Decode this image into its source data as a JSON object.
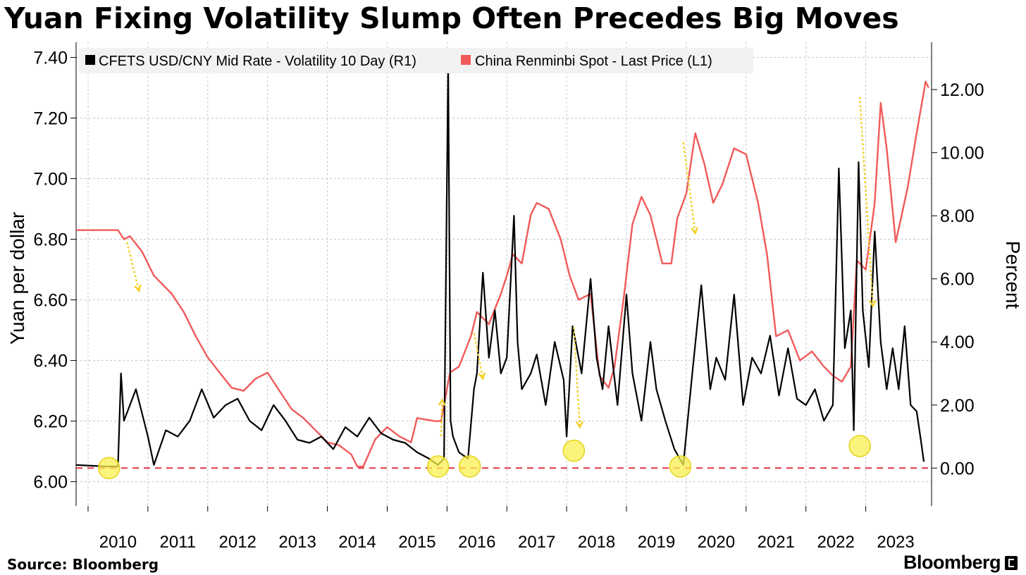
{
  "title": "Yuan Fixing Volatility Slump Often Precedes Big Moves",
  "source": "Source: Bloomberg",
  "brand": "Bloomberg",
  "chart_data": {
    "type": "line",
    "xlabel": "",
    "ylabel_left": "Yuan per dollar",
    "ylabel_right": "Percent",
    "x_ticks": [
      "2010",
      "2011",
      "2012",
      "2013",
      "2014",
      "2015",
      "2016",
      "2017",
      "2018",
      "2019",
      "2020",
      "2021",
      "2022",
      "2023"
    ],
    "x_range": [
      2009.3,
      2023.6
    ],
    "ylim_left": [
      5.92,
      7.45
    ],
    "ylim_right": [
      -1.2,
      13.5
    ],
    "left_ticks": [
      "6.00",
      "6.20",
      "6.40",
      "6.60",
      "6.80",
      "7.00",
      "7.20",
      "7.40"
    ],
    "right_ticks": [
      "0.00",
      "2.00",
      "4.00",
      "6.00",
      "8.00",
      "10.00",
      "12.00"
    ],
    "grid": true,
    "legend_position": "top-left",
    "legend": [
      {
        "label": "CFETS USD/CNY Mid Rate - Volatility 10 Day (R1)",
        "color": "#000000"
      },
      {
        "label": "China Renminbi Spot - Last Price (L1)",
        "color": "#f05a5a"
      }
    ],
    "series": [
      {
        "name": "China Renminbi Spot - Last Price (L1)",
        "axis": "left",
        "color": "#f05a5a",
        "x": [
          2009.3,
          2009.8,
          2010.0,
          2010.1,
          2010.2,
          2010.4,
          2010.6,
          2010.9,
          2011.1,
          2011.3,
          2011.5,
          2011.7,
          2011.9,
          2012.1,
          2012.3,
          2012.5,
          2012.7,
          2012.9,
          2013.1,
          2013.3,
          2013.5,
          2013.7,
          2013.9,
          2014.0,
          2014.1,
          2014.3,
          2014.5,
          2014.7,
          2014.9,
          2015.0,
          2015.3,
          2015.4,
          2015.55,
          2015.7,
          2015.9,
          2016.0,
          2016.2,
          2016.4,
          2016.5,
          2016.6,
          2016.75,
          2016.9,
          2017.0,
          2017.2,
          2017.4,
          2017.55,
          2017.7,
          2017.9,
          2018.05,
          2018.2,
          2018.3,
          2018.45,
          2018.6,
          2018.75,
          2018.9,
          2019.1,
          2019.25,
          2019.35,
          2019.5,
          2019.65,
          2019.8,
          2019.95,
          2020.1,
          2020.3,
          2020.5,
          2020.7,
          2020.85,
          2021.0,
          2021.2,
          2021.4,
          2021.6,
          2021.8,
          2021.95,
          2022.1,
          2022.25,
          2022.35,
          2022.5,
          2022.65,
          2022.75,
          2022.85,
          2023.0,
          2023.1,
          2023.2,
          2023.35,
          2023.5,
          2023.55
        ],
        "y": [
          6.83,
          6.83,
          6.83,
          6.8,
          6.81,
          6.76,
          6.68,
          6.62,
          6.56,
          6.48,
          6.41,
          6.36,
          6.31,
          6.3,
          6.34,
          6.36,
          6.3,
          6.24,
          6.21,
          6.17,
          6.13,
          6.12,
          6.09,
          6.05,
          6.05,
          6.14,
          6.18,
          6.15,
          6.13,
          6.21,
          6.2,
          6.2,
          6.36,
          6.38,
          6.48,
          6.56,
          6.52,
          6.62,
          6.68,
          6.75,
          6.72,
          6.88,
          6.92,
          6.9,
          6.8,
          6.68,
          6.6,
          6.62,
          6.35,
          6.31,
          6.38,
          6.6,
          6.85,
          6.94,
          6.88,
          6.72,
          6.72,
          6.87,
          6.95,
          7.15,
          7.05,
          6.92,
          6.98,
          7.1,
          7.08,
          6.92,
          6.75,
          6.48,
          6.5,
          6.4,
          6.43,
          6.38,
          6.35,
          6.33,
          6.38,
          6.73,
          6.7,
          6.92,
          7.25,
          7.1,
          6.79,
          6.88,
          6.97,
          7.15,
          7.32,
          7.3
        ]
      },
      {
        "name": "CFETS USD/CNY Mid Rate - Volatility 10 Day (R1)",
        "axis": "right",
        "color": "#000000",
        "x": [
          2009.3,
          2009.8,
          2010.0,
          2010.05,
          2010.1,
          2010.3,
          2010.5,
          2010.6,
          2010.8,
          2011.0,
          2011.2,
          2011.4,
          2011.6,
          2011.8,
          2012.0,
          2012.2,
          2012.4,
          2012.6,
          2012.8,
          2013.0,
          2013.2,
          2013.4,
          2013.6,
          2013.8,
          2014.0,
          2014.2,
          2014.4,
          2014.6,
          2014.8,
          2015.0,
          2015.2,
          2015.35,
          2015.45,
          2015.52,
          2015.56,
          2015.6,
          2015.7,
          2015.85,
          2015.95,
          2016.0,
          2016.1,
          2016.2,
          2016.3,
          2016.4,
          2016.5,
          2016.62,
          2016.68,
          2016.75,
          2016.9,
          2017.0,
          2017.15,
          2017.3,
          2017.45,
          2017.5,
          2017.6,
          2017.75,
          2017.9,
          2018.0,
          2018.1,
          2018.2,
          2018.35,
          2018.5,
          2018.6,
          2018.75,
          2018.9,
          2019.0,
          2019.15,
          2019.3,
          2019.45,
          2019.6,
          2019.75,
          2019.9,
          2020.0,
          2020.15,
          2020.3,
          2020.45,
          2020.6,
          2020.75,
          2020.9,
          2021.05,
          2021.2,
          2021.35,
          2021.5,
          2021.65,
          2021.8,
          2021.95,
          2022.05,
          2022.15,
          2022.25,
          2022.3,
          2022.38,
          2022.45,
          2022.55,
          2022.65,
          2022.75,
          2022.85,
          2022.95,
          2023.05,
          2023.15,
          2023.25,
          2023.35,
          2023.42,
          2023.47
        ],
        "y": [
          0.1,
          0.05,
          0.05,
          3.0,
          1.5,
          2.5,
          1.0,
          0.1,
          1.2,
          1.0,
          1.5,
          2.5,
          1.6,
          2.0,
          2.2,
          1.5,
          1.2,
          2.0,
          1.5,
          0.9,
          0.8,
          1.0,
          0.6,
          1.3,
          1.0,
          1.6,
          1.1,
          0.9,
          0.8,
          0.5,
          0.3,
          0.1,
          0.3,
          12.8,
          1.5,
          1.0,
          0.5,
          0.3,
          2.5,
          3.0,
          6.2,
          3.5,
          5.0,
          3.0,
          3.5,
          8.0,
          4.0,
          2.5,
          3.0,
          3.6,
          2.0,
          4.0,
          2.8,
          1.0,
          4.5,
          3.0,
          6.0,
          3.5,
          2.5,
          4.5,
          2.0,
          5.5,
          3.0,
          1.5,
          4.0,
          2.5,
          1.5,
          0.6,
          0.1,
          3.0,
          5.8,
          2.5,
          3.5,
          2.8,
          5.5,
          2.0,
          3.5,
          3.0,
          4.2,
          2.3,
          3.8,
          2.2,
          2.0,
          2.5,
          1.5,
          2.0,
          9.5,
          3.8,
          5.0,
          1.2,
          9.7,
          5.0,
          3.2,
          7.5,
          4.0,
          2.5,
          3.8,
          2.5,
          4.5,
          2.0,
          1.8,
          0.9,
          0.2
        ]
      }
    ],
    "baseline_right": 0.0,
    "low_vol_markers": [
      {
        "x": 2009.85,
        "y": 0.0
      },
      {
        "x": 2015.35,
        "y": 0.05
      },
      {
        "x": 2015.88,
        "y": 0.05
      },
      {
        "x": 2017.62,
        "y": 0.55
      },
      {
        "x": 2019.4,
        "y": 0.05
      },
      {
        "x": 2022.4,
        "y": 0.7
      }
    ],
    "move_arrows": [
      {
        "x1": 2010.15,
        "y1": 6.79,
        "x2": 2010.35,
        "y2": 6.63
      },
      {
        "x1": 2015.4,
        "y1": 6.15,
        "x2": 2015.42,
        "y2": 6.27
      },
      {
        "x1": 2015.95,
        "y1": 6.49,
        "x2": 2016.1,
        "y2": 6.34
      },
      {
        "x1": 2017.62,
        "y1": 6.51,
        "x2": 2017.72,
        "y2": 6.18
      },
      {
        "x1": 2019.45,
        "y1": 7.12,
        "x2": 2019.65,
        "y2": 6.82
      },
      {
        "x1": 2022.4,
        "y1": 7.27,
        "x2": 2022.62,
        "y2": 6.58
      }
    ]
  }
}
